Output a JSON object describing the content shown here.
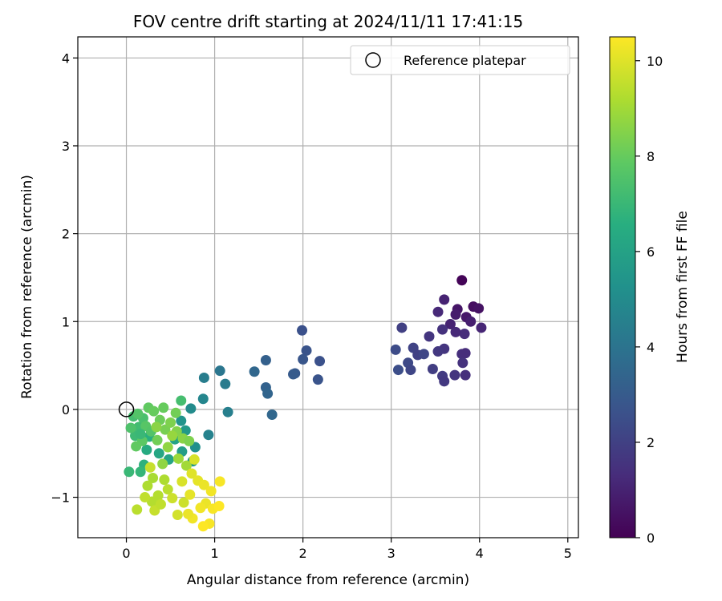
{
  "chart_data": {
    "type": "scatter",
    "title": "FOV centre drift starting at 2024/11/11 17:41:15",
    "xlabel": "Angular distance from reference (arcmin)",
    "ylabel": "Rotation from reference (arcmin)",
    "xlim": [
      -0.55,
      5.12
    ],
    "ylim": [
      -1.46,
      4.24
    ],
    "xticks": [
      0,
      1,
      2,
      3,
      4,
      5
    ],
    "yticks": [
      -1,
      0,
      1,
      2,
      3,
      4
    ],
    "ytick_labels": [
      "−1",
      "0",
      "1",
      "2",
      "3",
      "4"
    ],
    "grid": true,
    "legend": {
      "placement": "top-right",
      "entries": [
        "Reference platepar"
      ]
    },
    "reference_point": {
      "x": 0,
      "y": 0,
      "label": "Reference platepar"
    },
    "colorbar": {
      "label": "Hours from first FF file",
      "range": [
        0,
        10.5
      ],
      "ticks": [
        0,
        2,
        4,
        6,
        8,
        10
      ],
      "colormap": "viridis"
    },
    "points": [
      {
        "x": 3.8,
        "y": 1.47,
        "c": 0.1
      },
      {
        "x": 3.93,
        "y": 1.17,
        "c": 0.4
      },
      {
        "x": 3.75,
        "y": 1.14,
        "c": 0.6
      },
      {
        "x": 3.99,
        "y": 1.15,
        "c": 0.5
      },
      {
        "x": 3.73,
        "y": 1.08,
        "c": 0.8
      },
      {
        "x": 3.85,
        "y": 1.05,
        "c": 0.7
      },
      {
        "x": 3.6,
        "y": 1.25,
        "c": 1.0
      },
      {
        "x": 3.53,
        "y": 1.11,
        "c": 1.2
      },
      {
        "x": 3.67,
        "y": 0.97,
        "c": 1.0
      },
      {
        "x": 3.9,
        "y": 1.0,
        "c": 0.9
      },
      {
        "x": 4.02,
        "y": 0.93,
        "c": 1.1
      },
      {
        "x": 3.83,
        "y": 0.86,
        "c": 1.3
      },
      {
        "x": 3.58,
        "y": 0.91,
        "c": 1.5
      },
      {
        "x": 3.43,
        "y": 0.83,
        "c": 1.6
      },
      {
        "x": 3.73,
        "y": 0.88,
        "c": 1.2
      },
      {
        "x": 3.8,
        "y": 0.63,
        "c": 1.4
      },
      {
        "x": 3.84,
        "y": 0.64,
        "c": 1.3
      },
      {
        "x": 3.6,
        "y": 0.69,
        "c": 1.6
      },
      {
        "x": 3.53,
        "y": 0.66,
        "c": 1.7
      },
      {
        "x": 3.81,
        "y": 0.53,
        "c": 1.5
      },
      {
        "x": 3.47,
        "y": 0.46,
        "c": 1.9
      },
      {
        "x": 3.58,
        "y": 0.38,
        "c": 1.8
      },
      {
        "x": 3.6,
        "y": 0.32,
        "c": 1.7
      },
      {
        "x": 3.72,
        "y": 0.39,
        "c": 1.6
      },
      {
        "x": 3.84,
        "y": 0.39,
        "c": 1.4
      },
      {
        "x": 3.25,
        "y": 0.7,
        "c": 2.1
      },
      {
        "x": 3.3,
        "y": 0.62,
        "c": 2.0
      },
      {
        "x": 3.37,
        "y": 0.63,
        "c": 2.2
      },
      {
        "x": 3.19,
        "y": 0.53,
        "c": 2.3
      },
      {
        "x": 3.05,
        "y": 0.68,
        "c": 2.4
      },
      {
        "x": 3.22,
        "y": 0.45,
        "c": 2.2
      },
      {
        "x": 3.08,
        "y": 0.45,
        "c": 2.5
      },
      {
        "x": 3.12,
        "y": 0.93,
        "c": 2.0
      },
      {
        "x": 1.99,
        "y": 0.9,
        "c": 2.6
      },
      {
        "x": 2.04,
        "y": 0.67,
        "c": 2.7
      },
      {
        "x": 2.0,
        "y": 0.57,
        "c": 2.8
      },
      {
        "x": 2.19,
        "y": 0.55,
        "c": 2.6
      },
      {
        "x": 2.17,
        "y": 0.34,
        "c": 2.7
      },
      {
        "x": 1.91,
        "y": 0.41,
        "c": 2.9
      },
      {
        "x": 1.89,
        "y": 0.4,
        "c": 3.0
      },
      {
        "x": 1.58,
        "y": 0.56,
        "c": 3.2
      },
      {
        "x": 1.45,
        "y": 0.43,
        "c": 3.5
      },
      {
        "x": 1.58,
        "y": 0.25,
        "c": 3.3
      },
      {
        "x": 1.6,
        "y": 0.18,
        "c": 3.4
      },
      {
        "x": 1.65,
        "y": -0.06,
        "c": 3.5
      },
      {
        "x": 1.06,
        "y": 0.44,
        "c": 4.1
      },
      {
        "x": 1.12,
        "y": 0.29,
        "c": 4.3
      },
      {
        "x": 0.88,
        "y": 0.36,
        "c": 4.4
      },
      {
        "x": 1.15,
        "y": -0.03,
        "c": 4.5
      },
      {
        "x": 0.93,
        "y": -0.29,
        "c": 4.6
      },
      {
        "x": 0.87,
        "y": 0.12,
        "c": 4.8
      },
      {
        "x": 0.73,
        "y": 0.01,
        "c": 5.0
      },
      {
        "x": 0.78,
        "y": -0.43,
        "c": 5.2
      },
      {
        "x": 0.62,
        "y": -0.13,
        "c": 5.4
      },
      {
        "x": 0.67,
        "y": -0.24,
        "c": 5.6
      },
      {
        "x": 0.75,
        "y": -0.59,
        "c": 5.5
      },
      {
        "x": 0.63,
        "y": -0.48,
        "c": 5.8
      },
      {
        "x": 0.55,
        "y": -0.34,
        "c": 6.0
      },
      {
        "x": 0.48,
        "y": -0.57,
        "c": 6.1
      },
      {
        "x": 0.37,
        "y": -0.5,
        "c": 6.2
      },
      {
        "x": 0.23,
        "y": -0.46,
        "c": 6.4
      },
      {
        "x": 0.26,
        "y": -0.31,
        "c": 6.6
      },
      {
        "x": 0.2,
        "y": -0.63,
        "c": 6.7
      },
      {
        "x": 0.16,
        "y": -0.71,
        "c": 6.9
      },
      {
        "x": 0.03,
        "y": -0.71,
        "c": 7.0
      },
      {
        "x": 0.1,
        "y": -0.3,
        "c": 7.1
      },
      {
        "x": 0.14,
        "y": -0.2,
        "c": 7.2
      },
      {
        "x": 0.08,
        "y": -0.08,
        "c": 7.3
      },
      {
        "x": 0.19,
        "y": -0.1,
        "c": 7.4
      },
      {
        "x": 0.62,
        "y": 0.1,
        "c": 7.3
      },
      {
        "x": 0.05,
        "y": -0.21,
        "c": 7.5
      },
      {
        "x": 0.13,
        "y": -0.05,
        "c": 7.6
      },
      {
        "x": 0.22,
        "y": -0.19,
        "c": 7.7
      },
      {
        "x": 0.28,
        "y": -0.25,
        "c": 7.6
      },
      {
        "x": 0.18,
        "y": -0.36,
        "c": 7.8
      },
      {
        "x": 0.11,
        "y": -0.42,
        "c": 7.9
      },
      {
        "x": 0.25,
        "y": 0.02,
        "c": 7.9
      },
      {
        "x": 0.31,
        "y": -0.02,
        "c": 8.0
      },
      {
        "x": 0.38,
        "y": -0.12,
        "c": 8.1
      },
      {
        "x": 0.42,
        "y": 0.02,
        "c": 8.0
      },
      {
        "x": 0.35,
        "y": -0.35,
        "c": 8.2
      },
      {
        "x": 0.44,
        "y": -0.23,
        "c": 8.3
      },
      {
        "x": 0.5,
        "y": -0.15,
        "c": 8.4
      },
      {
        "x": 0.56,
        "y": -0.04,
        "c": 8.2
      },
      {
        "x": 0.57,
        "y": -0.25,
        "c": 8.5
      },
      {
        "x": 0.64,
        "y": -0.33,
        "c": 8.6
      },
      {
        "x": 0.71,
        "y": -0.36,
        "c": 8.4
      },
      {
        "x": 0.47,
        "y": -0.43,
        "c": 8.7
      },
      {
        "x": 0.52,
        "y": -0.3,
        "c": 8.8
      },
      {
        "x": 0.41,
        "y": -0.62,
        "c": 8.7
      },
      {
        "x": 0.59,
        "y": -0.56,
        "c": 8.9
      },
      {
        "x": 0.68,
        "y": -0.64,
        "c": 9.0
      },
      {
        "x": 0.3,
        "y": -0.78,
        "c": 9.1
      },
      {
        "x": 0.24,
        "y": -0.87,
        "c": 9.2
      },
      {
        "x": 0.36,
        "y": -0.98,
        "c": 9.3
      },
      {
        "x": 0.43,
        "y": -0.8,
        "c": 9.2
      },
      {
        "x": 0.47,
        "y": -0.91,
        "c": 9.4
      },
      {
        "x": 0.29,
        "y": -1.05,
        "c": 9.3
      },
      {
        "x": 0.21,
        "y": -1.0,
        "c": 9.5
      },
      {
        "x": 0.12,
        "y": -1.14,
        "c": 9.4
      },
      {
        "x": 0.32,
        "y": -1.15,
        "c": 9.6
      },
      {
        "x": 0.39,
        "y": -1.08,
        "c": 9.5
      },
      {
        "x": 0.27,
        "y": -0.66,
        "c": 9.6
      },
      {
        "x": 0.52,
        "y": -1.01,
        "c": 9.7
      },
      {
        "x": 0.58,
        "y": -1.2,
        "c": 9.8
      },
      {
        "x": 0.65,
        "y": -1.06,
        "c": 9.7
      },
      {
        "x": 0.63,
        "y": -0.82,
        "c": 9.9
      },
      {
        "x": 0.74,
        "y": -0.73,
        "c": 10.0
      },
      {
        "x": 0.81,
        "y": -0.81,
        "c": 10.1
      },
      {
        "x": 0.88,
        "y": -0.86,
        "c": 10.2
      },
      {
        "x": 0.96,
        "y": -0.93,
        "c": 10.3
      },
      {
        "x": 0.9,
        "y": -1.07,
        "c": 10.2
      },
      {
        "x": 0.84,
        "y": -1.12,
        "c": 10.3
      },
      {
        "x": 0.98,
        "y": -1.13,
        "c": 10.4
      },
      {
        "x": 1.05,
        "y": -1.1,
        "c": 10.5
      },
      {
        "x": 1.06,
        "y": -0.82,
        "c": 10.4
      },
      {
        "x": 0.75,
        "y": -1.24,
        "c": 10.3
      },
      {
        "x": 0.94,
        "y": -1.3,
        "c": 10.4
      },
      {
        "x": 0.87,
        "y": -1.33,
        "c": 10.5
      },
      {
        "x": 0.7,
        "y": -1.19,
        "c": 10.2
      },
      {
        "x": 0.77,
        "y": -0.57,
        "c": 9.9
      },
      {
        "x": 0.72,
        "y": -0.97,
        "c": 10.1
      },
      {
        "x": 0.34,
        "y": -0.2,
        "c": 8.6
      },
      {
        "x": 0.16,
        "y": -0.28,
        "c": 7.0
      }
    ]
  }
}
